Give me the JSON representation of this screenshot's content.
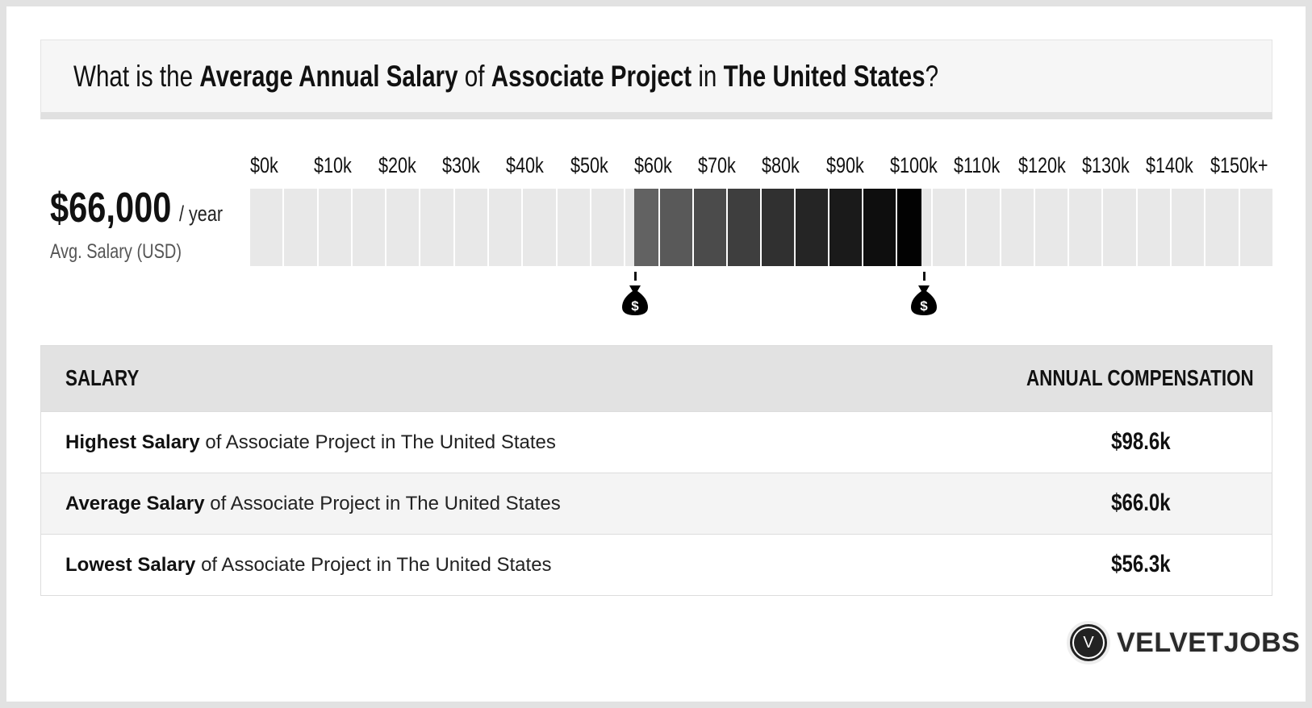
{
  "title": {
    "p1": "What is the ",
    "b1": "Average Annual Salary",
    "p2": " of ",
    "b2": "Associate Project",
    "p3": " in ",
    "b3": "The United States",
    "p4": "?"
  },
  "summary": {
    "salary": "$66,000",
    "per": "/ year",
    "label": "Avg. Salary (USD)"
  },
  "chart_data": {
    "type": "bar",
    "tick_labels": [
      "$0k",
      "$10k",
      "$20k",
      "$30k",
      "$40k",
      "$50k",
      "$60k",
      "$70k",
      "$80k",
      "$90k",
      "$100k",
      "$110k",
      "$120k",
      "$130k",
      "$140k",
      "$150k+"
    ],
    "range_low": 56300,
    "range_high": 98600,
    "average": 66000,
    "highlight_colors": [
      "#626262",
      "#595959",
      "#4b4b4b",
      "#3e3e3e",
      "#303030",
      "#252525",
      "#1a1a1a",
      "#0e0e0e",
      "#020202"
    ],
    "base_color": "#e8e8e8"
  },
  "markers": {
    "icon": "money-bag-icon",
    "symbol": "$"
  },
  "table": {
    "headers": [
      "SALARY",
      "ANNUAL COMPENSATION"
    ],
    "rows": [
      {
        "bold": "Highest Salary",
        "rest": " of Associate Project in The United States",
        "value": "$98.6k"
      },
      {
        "bold": "Average Salary",
        "rest": " of Associate Project in The United States",
        "value": "$66.0k"
      },
      {
        "bold": "Lowest Salary",
        "rest": " of Associate Project in The United States",
        "value": "$56.3k"
      }
    ]
  },
  "logo": {
    "letter": "V",
    "text": "VELVETJOBS"
  }
}
